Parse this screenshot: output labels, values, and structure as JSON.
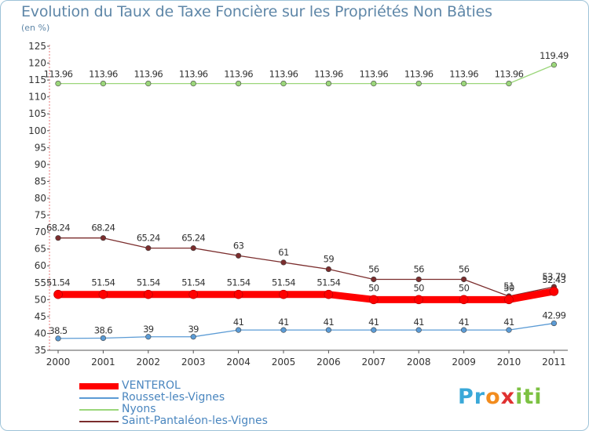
{
  "chart_data": {
    "type": "line",
    "title": "Evolution du Taux de Taxe Foncière sur les Propriétés Non Bâties",
    "ylabel": "(en %)",
    "xlabel": "",
    "categories": [
      "2000",
      "2001",
      "2002",
      "2003",
      "2004",
      "2005",
      "2006",
      "2007",
      "2008",
      "2009",
      "2010",
      "2011"
    ],
    "ylim": [
      35,
      125
    ],
    "yticks": [
      "35",
      "40",
      "45",
      "50",
      "55",
      "60",
      "65",
      "70",
      "75",
      "80",
      "85",
      "90",
      "95",
      "100",
      "105",
      "110",
      "115",
      "120",
      "125"
    ],
    "grid": false,
    "legend_position": "bottom-left",
    "series": [
      {
        "name": "VENTEROL",
        "color": "#ff0000",
        "values": [
          51.54,
          51.54,
          51.54,
          51.54,
          51.54,
          51.54,
          51.54,
          50,
          50,
          50,
          50,
          52.43
        ],
        "labels": [
          "51.54",
          "51.54",
          "51.54",
          "51.54",
          "51.54",
          "51.54",
          "51.54",
          "50",
          "50",
          "50",
          "50",
          "52.43"
        ]
      },
      {
        "name": "Rousset-les-Vignes",
        "color": "#5b9bd5",
        "values": [
          38.5,
          38.6,
          39,
          39,
          41,
          41,
          41,
          41,
          41,
          41,
          41,
          42.99
        ],
        "labels": [
          "38.5",
          "38.6",
          "39",
          "39",
          "41",
          "41",
          "41",
          "41",
          "41",
          "41",
          "41",
          "42.99"
        ]
      },
      {
        "name": "Nyons",
        "color": "#9bd67a",
        "values": [
          113.96,
          113.96,
          113.96,
          113.96,
          113.96,
          113.96,
          113.96,
          113.96,
          113.96,
          113.96,
          113.96,
          119.49
        ],
        "labels": [
          "113.96",
          "113.96",
          "113.96",
          "113.96",
          "113.96",
          "113.96",
          "113.96",
          "113.96",
          "113.96",
          "113.96",
          "113.96",
          "119.49"
        ]
      },
      {
        "name": "Saint-Pantaléon-les-Vignes",
        "color": "#7b2d2d",
        "values": [
          68.24,
          68.24,
          65.24,
          65.24,
          63,
          61,
          59,
          56,
          56,
          56,
          51,
          53.79
        ],
        "labels": [
          "68.24",
          "68.24",
          "65.24",
          "65.24",
          "63",
          "61",
          "59",
          "56",
          "56",
          "56",
          "51",
          "53.79"
        ]
      }
    ]
  },
  "logo": {
    "text_parts": [
      "Pr",
      "o",
      "x",
      "iti"
    ],
    "colors": [
      "#3aa8d8",
      "#f28c1e",
      "#e03131",
      "#7cc142"
    ]
  }
}
